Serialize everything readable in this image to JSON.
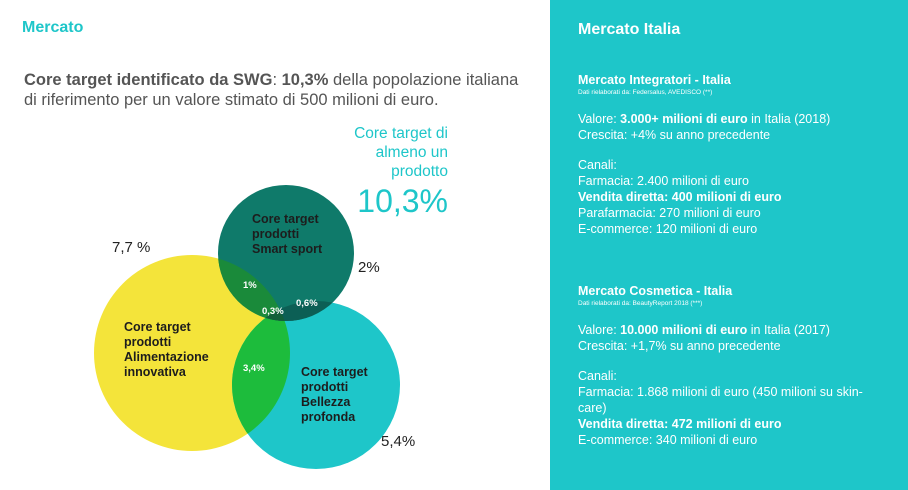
{
  "left": {
    "section_title": "Mercato",
    "intro": {
      "bold1": "Core target identificato da SWG",
      "text1": ": ",
      "bold2": "10,3%",
      "text2": " della popolazione italiana di riferimento per un valore stimato di 500 milioni di euro."
    },
    "core_target": {
      "label": "Core target di almeno un prodotto",
      "value": "10,3%"
    },
    "venn": {
      "circles": [
        {
          "name": "Core target prodotti Smart sport",
          "color": "#0f7a6a",
          "pct": "2%"
        },
        {
          "name": "Core target prodotti Alimentazione innovativa",
          "color": "#f4e43a",
          "pct": "7,7 %"
        },
        {
          "name": "Core target prodotti Bellezza profonda",
          "color": "#1ec6c9",
          "pct": "5,4%"
        }
      ],
      "labels": {
        "smart_l1": "Core target",
        "smart_l2": "prodotti",
        "smart_l3": "Smart sport",
        "alim_l1": "Core target",
        "alim_l2": "prodotti",
        "alim_l3": "Alimentazione",
        "alim_l4": "innovativa",
        "bell_l1": "Core target",
        "bell_l2": "prodotti",
        "bell_l3": "Bellezza",
        "bell_l4": "profonda"
      },
      "overlaps": {
        "smart_alim": "1%",
        "smart_bell": "0,6%",
        "all_three": "0,3%",
        "alim_bell": "3,4%"
      },
      "overlap_colors": {
        "smart_alim": "#1a8a3a",
        "smart_bell": "#0c5f55",
        "all_three": "#12603a",
        "alim_bell": "#1dbc3c"
      }
    }
  },
  "right": {
    "title": "Mercato Italia",
    "integratori": {
      "heading": "Mercato Integratori - Italia",
      "source": "Dati rielaborati da: Federsalus, AVEDISCO (**)",
      "valore_prefix": "Valore: ",
      "valore_bold": "3.000+ milioni di euro",
      "valore_suffix": " in Italia (2018)",
      "crescita": "Crescita: +4% su anno precedente",
      "canali": "Canali:",
      "farmacia": "Farmacia: 2.400 milioni di euro",
      "vendita_diretta": "Vendita diretta: 400 milioni di euro",
      "parafarmacia": "Parafarmacia: 270 milioni di euro",
      "ecommerce": "E-commerce: 120 milioni di euro"
    },
    "cosmetica": {
      "heading": "Mercato Cosmetica - Italia",
      "source": "Dati rielaborati da: BeautyReport 2018 (***)",
      "valore_prefix": "Valore: ",
      "valore_bold": "10.000 milioni di euro",
      "valore_suffix": " in Italia (2017)",
      "crescita": "Crescita: +1,7% su anno precedente",
      "canali": "Canali:",
      "farmacia": "Farmacia: 1.868 milioni di euro (450 milioni su skin-care)",
      "vendita_diretta": "Vendita diretta: 472 milioni di euro",
      "ecommerce": "E-commerce: 340 milioni di euro"
    }
  }
}
